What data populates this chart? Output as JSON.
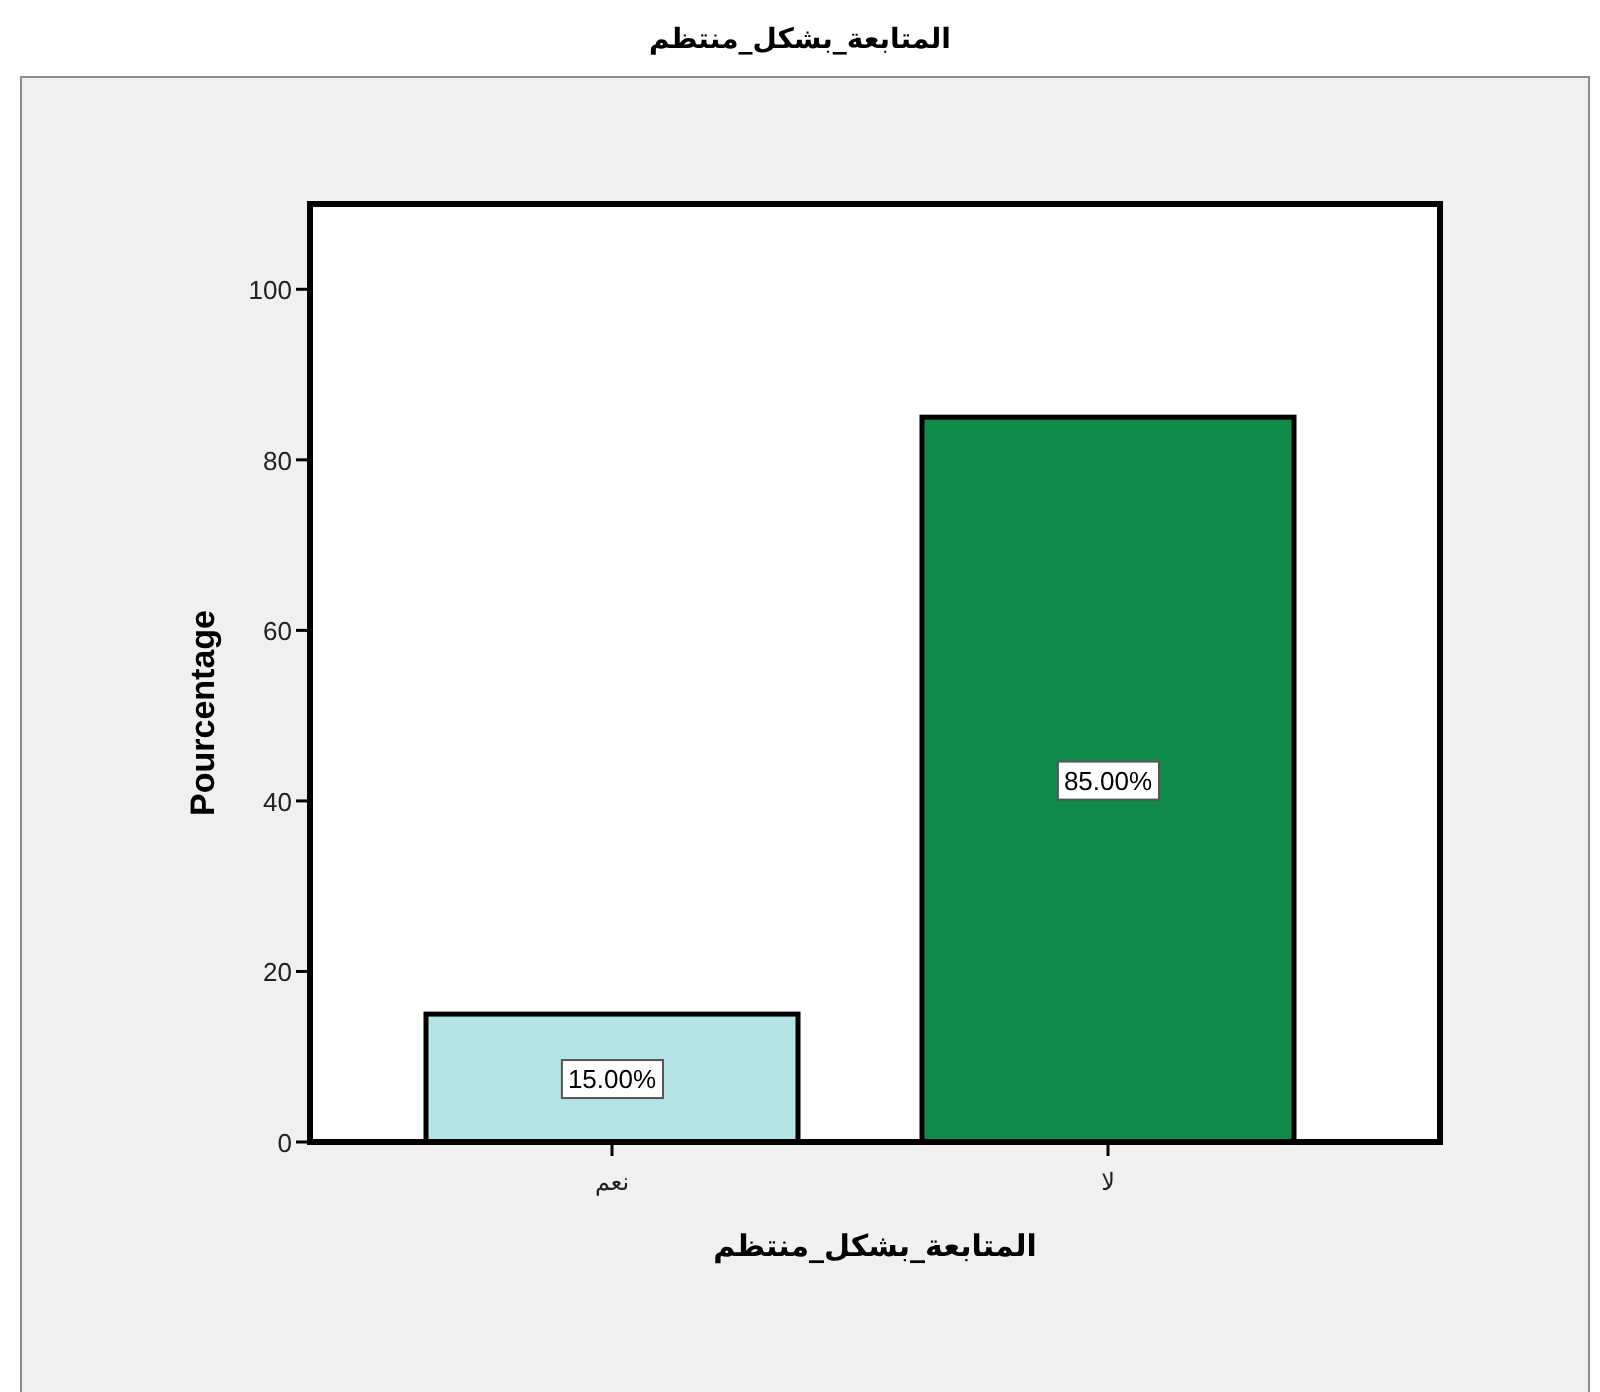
{
  "chart_data": {
    "type": "bar",
    "title": "المتابعة_بشكل_منتظم",
    "xlabel": "المتابعة_بشكل_منتظم",
    "ylabel": "Pourcentage",
    "categories": [
      "نعم",
      "لا"
    ],
    "values": [
      15,
      85
    ],
    "colors": [
      "#b4e4e6",
      "#0f8a48"
    ],
    "value_labels": [
      "15.00%",
      "85.00%"
    ],
    "ylim": [
      0,
      110
    ],
    "yticks": [
      0,
      20,
      40,
      60,
      80,
      100
    ],
    "grid": false,
    "legend": false
  }
}
